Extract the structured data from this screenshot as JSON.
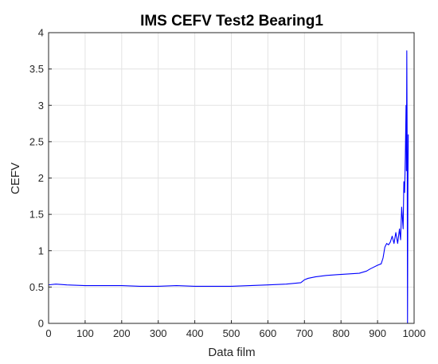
{
  "chart_data": {
    "type": "line",
    "title": "IMS CEFV Test2 Bearing1",
    "xlabel": "Data film",
    "ylabel": "CEFV",
    "xlim": [
      0,
      1000
    ],
    "ylim": [
      0,
      4
    ],
    "xticks": [
      0,
      100,
      200,
      300,
      400,
      500,
      600,
      700,
      800,
      900,
      1000
    ],
    "yticks": [
      0,
      0.5,
      1,
      1.5,
      2,
      2.5,
      3,
      3.5,
      4
    ],
    "xtick_labels": [
      "0",
      "100",
      "200",
      "300",
      "400",
      "500",
      "600",
      "700",
      "800",
      "900",
      "1000"
    ],
    "ytick_labels": [
      "0",
      "0.5",
      "1",
      "1.5",
      "2",
      "2.5",
      "3",
      "3.5",
      "4"
    ],
    "grid": true,
    "line_color": "#0000ff",
    "series": [
      {
        "x": [
          0,
          20,
          50,
          100,
          150,
          200,
          250,
          300,
          350,
          400,
          450,
          500,
          550,
          600,
          650,
          690,
          700,
          710,
          730,
          760,
          790,
          820,
          850,
          870,
          880,
          900,
          910,
          915,
          920,
          925,
          930,
          935,
          940,
          945,
          950,
          955,
          960,
          963,
          966,
          970,
          972,
          974,
          976,
          978,
          979,
          980,
          981,
          982,
          983,
          984
        ],
        "y": [
          0.53,
          0.54,
          0.53,
          0.52,
          0.52,
          0.52,
          0.51,
          0.51,
          0.52,
          0.51,
          0.51,
          0.51,
          0.52,
          0.53,
          0.54,
          0.56,
          0.6,
          0.62,
          0.64,
          0.66,
          0.67,
          0.68,
          0.69,
          0.72,
          0.75,
          0.8,
          0.82,
          0.9,
          1.05,
          1.1,
          1.08,
          1.12,
          1.2,
          1.1,
          1.25,
          1.1,
          1.3,
          1.15,
          1.6,
          1.3,
          1.95,
          1.8,
          2.3,
          3.0,
          2.1,
          3.75,
          2.5,
          0.0,
          1.9,
          2.6
        ]
      }
    ]
  }
}
